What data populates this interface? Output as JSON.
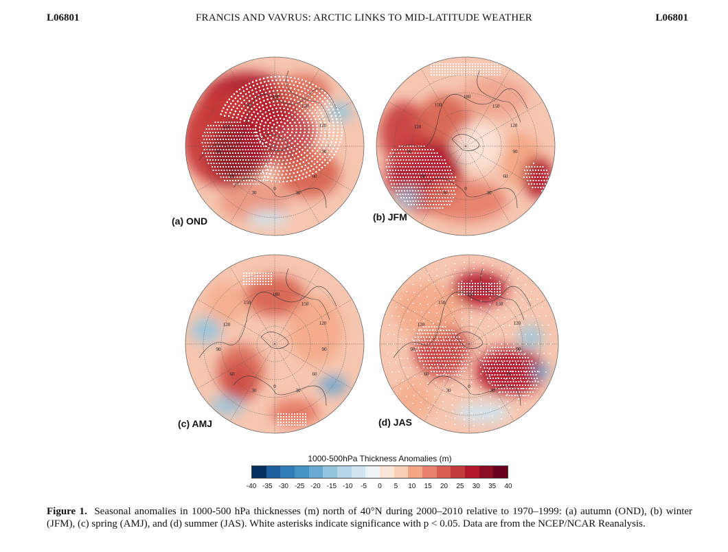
{
  "header": {
    "left": "L06801",
    "center": "FRANCIS AND VAVRUS: ARCTIC LINKS TO MID-LATITUDE WEATHER",
    "right": "L06801"
  },
  "panels": [
    {
      "label": "(a) OND",
      "blobs": [
        [
          "#b3202d",
          -40,
          -60,
          70,
          48,
          0.95
        ],
        [
          "#c83a3a",
          -70,
          -10,
          65,
          70,
          0.95
        ],
        [
          "#8c1a24",
          -55,
          10,
          40,
          45,
          0.9
        ],
        [
          "#d6604d",
          50,
          40,
          45,
          35,
          0.9
        ],
        [
          "#d6604d",
          40,
          -80,
          40,
          25,
          0.8
        ],
        [
          "#e8907a",
          -30,
          80,
          50,
          30,
          0.8
        ],
        [
          "#92c5de",
          95,
          -50,
          18,
          14,
          0.9
        ],
        [
          "#d1e5f0",
          -10,
          105,
          30,
          12,
          0.9
        ],
        [
          "#b2182b",
          0,
          -20,
          60,
          45,
          0.7
        ]
      ],
      "asterisks": [
        [
          8,
          -25,
          90,
          "ring"
        ],
        [
          -55,
          10,
          50,
          "band"
        ]
      ],
      "lon_labels": [
        [
          "180",
          2,
          -70
        ],
        [
          "150",
          -40,
          -58
        ],
        [
          "150",
          44,
          -56
        ],
        [
          "120",
          -70,
          -26
        ],
        [
          "120",
          70,
          -28
        ],
        [
          "90",
          -82,
          10
        ],
        [
          "90",
          72,
          10
        ],
        [
          "60",
          -62,
          46
        ],
        [
          "60",
          58,
          46
        ],
        [
          "30",
          -30,
          70
        ],
        [
          "30",
          34,
          70
        ],
        [
          "0",
          0,
          64
        ]
      ]
    },
    {
      "label": "(b) JFM",
      "blobs": [
        [
          "#b2182b",
          -60,
          40,
          55,
          55,
          0.95
        ],
        [
          "#c83a3a",
          -90,
          -20,
          35,
          45,
          0.9
        ],
        [
          "#d6604d",
          -30,
          -40,
          40,
          35,
          0.9
        ],
        [
          "#ee9f88",
          40,
          -70,
          50,
          30,
          0.8
        ],
        [
          "#f4a582",
          80,
          20,
          30,
          40,
          0.9
        ],
        [
          "#b2182b",
          105,
          45,
          22,
          30,
          0.95
        ],
        [
          "#e4735e",
          0,
          80,
          60,
          30,
          0.8
        ],
        [
          "#92c5de",
          -85,
          75,
          18,
          14,
          0.8
        ],
        [
          "#fbe5d9",
          20,
          0,
          35,
          35,
          0.9
        ]
      ],
      "asterisks": [
        [
          -65,
          45,
          50,
          "band"
        ],
        [
          105,
          45,
          20,
          "band"
        ],
        [
          0,
          -112,
          50,
          "strip"
        ]
      ],
      "lon_labels": [
        [
          "180",
          2,
          -70
        ],
        [
          "150",
          -40,
          -58
        ],
        [
          "150",
          44,
          -56
        ],
        [
          "120",
          -70,
          -26
        ],
        [
          "120",
          70,
          -28
        ],
        [
          "90",
          -82,
          10
        ],
        [
          "90",
          72,
          10
        ],
        [
          "60",
          -62,
          46
        ],
        [
          "60",
          58,
          46
        ],
        [
          "30",
          -30,
          70
        ],
        [
          "30",
          34,
          70
        ],
        [
          "0",
          0,
          64
        ]
      ]
    },
    {
      "label": "(c) AMJ",
      "blobs": [
        [
          "#d6604d",
          0,
          -70,
          45,
          30,
          0.9
        ],
        [
          "#b2182b",
          -52,
          55,
          25,
          30,
          0.95
        ],
        [
          "#d6604d",
          -50,
          40,
          35,
          40,
          0.8
        ],
        [
          "#e4735e",
          30,
          100,
          35,
          20,
          0.9
        ],
        [
          "#f4a582",
          60,
          -20,
          40,
          50,
          0.8
        ],
        [
          "#92c5de",
          -100,
          -20,
          22,
          18,
          0.9
        ],
        [
          "#92c5de",
          -70,
          90,
          25,
          15,
          0.8
        ],
        [
          "#6aa3cf",
          85,
          60,
          20,
          14,
          0.9
        ],
        [
          "#f4a582",
          -70,
          -60,
          30,
          30,
          0.7
        ]
      ],
      "asterisks": [
        [
          -25,
          -95,
          20,
          "strip"
        ],
        [
          25,
          110,
          20,
          "strip"
        ]
      ],
      "lon_labels": [
        [
          "180",
          2,
          -70
        ],
        [
          "150",
          -40,
          -58
        ],
        [
          "150",
          44,
          -56
        ],
        [
          "120",
          -70,
          -26
        ],
        [
          "120",
          70,
          -28
        ],
        [
          "90",
          -82,
          10
        ],
        [
          "90",
          72,
          10
        ],
        [
          "60",
          -62,
          46
        ],
        [
          "60",
          58,
          46
        ],
        [
          "30",
          -30,
          70
        ],
        [
          "30",
          34,
          70
        ],
        [
          "0",
          0,
          64
        ]
      ]
    },
    {
      "label": "(d) JAS",
      "blobs": [
        [
          "#b2182b",
          15,
          -80,
          40,
          25,
          0.95
        ],
        [
          "#c83a3a",
          -40,
          10,
          40,
          40,
          0.9
        ],
        [
          "#b2182b",
          60,
          40,
          50,
          35,
          0.95
        ],
        [
          "#f4a582",
          -60,
          -50,
          50,
          40,
          0.8
        ],
        [
          "#92c5de",
          90,
          -10,
          18,
          18,
          0.8
        ],
        [
          "#6aa3cf",
          105,
          40,
          12,
          12,
          0.9
        ],
        [
          "#d1e5f0",
          20,
          100,
          40,
          15,
          0.9
        ],
        [
          "#f4a582",
          -80,
          80,
          30,
          30,
          0.7
        ]
      ],
      "asterisks": [
        [
          0,
          0,
          120,
          "sparse"
        ],
        [
          -40,
          10,
          40,
          "band"
        ],
        [
          60,
          40,
          40,
          "band"
        ],
        [
          15,
          -80,
          30,
          "strip"
        ]
      ],
      "lon_labels": [
        [
          "180",
          2,
          -70
        ],
        [
          "150",
          -40,
          -58
        ],
        [
          "150",
          44,
          -56
        ],
        [
          "120",
          -70,
          -26
        ],
        [
          "120",
          70,
          -28
        ],
        [
          "90",
          -82,
          10
        ],
        [
          "90",
          72,
          10
        ],
        [
          "60",
          -62,
          46
        ],
        [
          "60",
          58,
          46
        ],
        [
          "30",
          -30,
          70
        ],
        [
          "30",
          34,
          70
        ],
        [
          "0",
          0,
          64
        ]
      ]
    }
  ],
  "colorbar": {
    "title": "1000-500hPa Thickness Anomalies (m)",
    "ticks": [
      "-40",
      "-35",
      "-30",
      "-25",
      "-20",
      "-15",
      "-10",
      "-5",
      "0",
      "5",
      "10",
      "15",
      "20",
      "25",
      "30",
      "35",
      "40"
    ],
    "colors": [
      "#053061",
      "#1f5f9d",
      "#2f7cb9",
      "#4393c3",
      "#6aa9d2",
      "#92c5de",
      "#b4d6e8",
      "#d1e5f0",
      "#eef3f6",
      "#fbe5d9",
      "#fbd0b9",
      "#f4a582",
      "#e7836a",
      "#d6604d",
      "#c43c3c",
      "#b2182b",
      "#8c0d22",
      "#67001f"
    ]
  },
  "caption": {
    "figure": "Figure 1.",
    "text": "Seasonal anomalies in 1000-500 hPa thicknesses (m) north of 40°N during 2000–2010 relative to 1970–1999: (a) autumn (OND), (b) winter (JFM), (c) spring (AMJ), and (d) summer (JAS). White asterisks indicate significance with p < 0.05. Data are from the NCEP/NCAR Reanalysis."
  },
  "theme": {
    "base_fill": "#f6c6b0",
    "ocean_tint": "#f9d7c8"
  }
}
